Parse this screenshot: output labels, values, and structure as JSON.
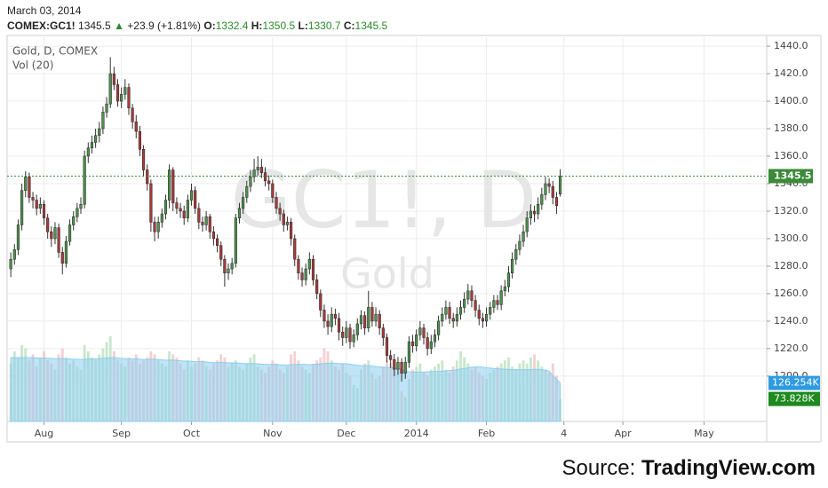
{
  "header": {
    "date": "March 03, 2014",
    "symbol": "COMEX:GC1!",
    "change": "+23.9 (+1.81%)",
    "ohlc_labels": [
      "O:",
      "H:",
      "L:",
      "C:"
    ]
  },
  "chart_data": {
    "type": "candlestick",
    "title": "Gold, D, COMEX",
    "watermark": [
      "GC1!, D",
      "Gold"
    ],
    "open": [
      1278,
      1285,
      1292,
      1310,
      1335,
      1345,
      1330,
      1328,
      1322,
      1325,
      1315,
      1305,
      1300,
      1308,
      1290,
      1282,
      1298,
      1310,
      1316,
      1322,
      1325,
      1360,
      1366,
      1370,
      1375,
      1380,
      1392,
      1398,
      1420,
      1412,
      1400,
      1405,
      1410,
      1395,
      1385,
      1378,
      1365,
      1350,
      1340,
      1312,
      1305,
      1312,
      1318,
      1328,
      1350,
      1326,
      1322,
      1320,
      1315,
      1328,
      1335,
      1322,
      1312,
      1310,
      1316,
      1305,
      1300,
      1295,
      1285,
      1275,
      1278,
      1282,
      1315,
      1322,
      1330,
      1338,
      1345,
      1350,
      1352,
      1348,
      1342,
      1340,
      1330,
      1322,
      1318,
      1310,
      1312,
      1300,
      1285,
      1275,
      1270,
      1278,
      1285,
      1270,
      1260,
      1248,
      1240,
      1236,
      1245,
      1242,
      1232,
      1228,
      1235,
      1225,
      1230,
      1238,
      1244,
      1235,
      1250,
      1240,
      1245,
      1235,
      1228,
      1215,
      1212,
      1205,
      1210,
      1202,
      1210,
      1225,
      1222,
      1230,
      1235,
      1228,
      1220,
      1225,
      1230,
      1240,
      1245,
      1250,
      1242,
      1240,
      1245,
      1250,
      1256,
      1262,
      1255,
      1248,
      1242,
      1240,
      1245,
      1250,
      1255,
      1252,
      1262,
      1265,
      1275,
      1285,
      1292,
      1298,
      1305,
      1315,
      1320,
      1318,
      1325,
      1332,
      1340,
      1338,
      1330,
      1332.4
    ],
    "high": [
      1290,
      1296,
      1314,
      1340,
      1349,
      1348,
      1334,
      1332,
      1330,
      1328,
      1318,
      1309,
      1312,
      1311,
      1294,
      1302,
      1314,
      1320,
      1326,
      1330,
      1364,
      1370,
      1375,
      1380,
      1385,
      1396,
      1403,
      1432,
      1425,
      1416,
      1410,
      1416,
      1413,
      1398,
      1390,
      1382,
      1368,
      1354,
      1343,
      1316,
      1316,
      1322,
      1332,
      1354,
      1352,
      1330,
      1326,
      1324,
      1332,
      1340,
      1338,
      1326,
      1316,
      1320,
      1318,
      1309,
      1303,
      1298,
      1288,
      1282,
      1286,
      1318,
      1326,
      1334,
      1342,
      1350,
      1358,
      1360,
      1358,
      1352,
      1346,
      1343,
      1334,
      1326,
      1321,
      1316,
      1315,
      1303,
      1288,
      1279,
      1282,
      1290,
      1288,
      1274,
      1263,
      1252,
      1245,
      1250,
      1249,
      1246,
      1236,
      1240,
      1238,
      1234,
      1242,
      1248,
      1247,
      1262,
      1254,
      1250,
      1248,
      1238,
      1231,
      1219,
      1216,
      1214,
      1213,
      1214,
      1229,
      1230,
      1234,
      1240,
      1238,
      1232,
      1230,
      1234,
      1244,
      1250,
      1255,
      1254,
      1246,
      1250,
      1255,
      1261,
      1267,
      1266,
      1259,
      1252,
      1246,
      1250,
      1254,
      1259,
      1259,
      1266,
      1270,
      1280,
      1290,
      1296,
      1303,
      1310,
      1320,
      1325,
      1324,
      1330,
      1337,
      1345,
      1344,
      1342,
      1334,
      1350.5
    ],
    "low": [
      1272,
      1281,
      1288,
      1306,
      1330,
      1326,
      1322,
      1317,
      1318,
      1310,
      1300,
      1294,
      1296,
      1286,
      1274,
      1279,
      1295,
      1306,
      1312,
      1318,
      1322,
      1355,
      1362,
      1366,
      1370,
      1376,
      1388,
      1395,
      1408,
      1396,
      1395,
      1401,
      1390,
      1380,
      1373,
      1360,
      1345,
      1335,
      1305,
      1298,
      1300,
      1308,
      1314,
      1322,
      1320,
      1318,
      1315,
      1310,
      1312,
      1324,
      1318,
      1307,
      1305,
      1306,
      1300,
      1295,
      1290,
      1280,
      1265,
      1270,
      1274,
      1279,
      1311,
      1318,
      1326,
      1334,
      1341,
      1346,
      1344,
      1338,
      1335,
      1326,
      1318,
      1313,
      1305,
      1306,
      1295,
      1280,
      1270,
      1265,
      1266,
      1274,
      1266,
      1256,
      1243,
      1235,
      1230,
      1232,
      1237,
      1226,
      1222,
      1224,
      1220,
      1221,
      1226,
      1234,
      1230,
      1232,
      1236,
      1236,
      1230,
      1222,
      1210,
      1206,
      1200,
      1201,
      1196,
      1198,
      1206,
      1217,
      1218,
      1226,
      1223,
      1215,
      1216,
      1221,
      1226,
      1236,
      1241,
      1238,
      1235,
      1236,
      1241,
      1246,
      1252,
      1250,
      1243,
      1237,
      1235,
      1236,
      1241,
      1246,
      1248,
      1248,
      1258,
      1261,
      1271,
      1281,
      1288,
      1294,
      1301,
      1310,
      1312,
      1314,
      1321,
      1328,
      1333,
      1325,
      1318,
      1330.7
    ],
    "close": [
      1285,
      1292,
      1310,
      1335,
      1345,
      1330,
      1328,
      1322,
      1325,
      1315,
      1305,
      1300,
      1308,
      1290,
      1282,
      1298,
      1310,
      1316,
      1322,
      1325,
      1360,
      1366,
      1370,
      1375,
      1380,
      1392,
      1398,
      1420,
      1412,
      1400,
      1405,
      1410,
      1395,
      1385,
      1378,
      1365,
      1350,
      1340,
      1312,
      1305,
      1312,
      1318,
      1328,
      1350,
      1326,
      1322,
      1320,
      1315,
      1328,
      1335,
      1322,
      1312,
      1310,
      1316,
      1305,
      1300,
      1295,
      1285,
      1275,
      1278,
      1282,
      1315,
      1322,
      1330,
      1338,
      1345,
      1350,
      1352,
      1348,
      1342,
      1340,
      1330,
      1322,
      1318,
      1310,
      1312,
      1300,
      1285,
      1275,
      1270,
      1278,
      1285,
      1270,
      1260,
      1248,
      1240,
      1236,
      1245,
      1242,
      1232,
      1228,
      1235,
      1225,
      1230,
      1238,
      1244,
      1235,
      1250,
      1240,
      1245,
      1235,
      1228,
      1215,
      1212,
      1205,
      1210,
      1202,
      1210,
      1225,
      1222,
      1230,
      1235,
      1228,
      1220,
      1225,
      1230,
      1240,
      1245,
      1250,
      1242,
      1240,
      1245,
      1250,
      1256,
      1262,
      1255,
      1248,
      1242,
      1240,
      1245,
      1250,
      1255,
      1252,
      1262,
      1265,
      1275,
      1285,
      1292,
      1298,
      1305,
      1315,
      1320,
      1318,
      1325,
      1332,
      1340,
      1338,
      1330,
      1324,
      1345.5
    ],
    "colors": {
      "up": "#4f8f4f",
      "down": "#a63b3b",
      "wick": "#333333",
      "last_line": "#3a8a3a"
    },
    "xlim": [
      -1,
      205
    ],
    "xticks": [
      {
        "value": 9,
        "label": "Aug"
      },
      {
        "value": 30,
        "label": "Sep"
      },
      {
        "value": 49,
        "label": "Oct"
      },
      {
        "value": 71,
        "label": "Nov"
      },
      {
        "value": 91,
        "label": "Dec"
      },
      {
        "value": 110,
        "label": "2014"
      },
      {
        "value": 129,
        "label": "Feb"
      },
      {
        "value": 150,
        "label": "4"
      },
      {
        "value": 166,
        "label": "Apr"
      },
      {
        "value": 188,
        "label": "May"
      }
    ],
    "ylim": [
      1167,
      1446.5
    ],
    "yticks": [
      {
        "value": 1200,
        "label": "1200.0"
      },
      {
        "value": 1220,
        "label": "1220.0"
      },
      {
        "value": 1240,
        "label": "1240.0"
      },
      {
        "value": 1260,
        "label": "1260.0"
      },
      {
        "value": 1280,
        "label": "1280.0"
      },
      {
        "value": 1300,
        "label": "1300.0"
      },
      {
        "value": 1320,
        "label": "1320.0"
      },
      {
        "value": 1340,
        "label": "1340.0"
      },
      {
        "value": 1360,
        "label": "1360.0"
      },
      {
        "value": 1380,
        "label": "1380.0"
      },
      {
        "value": 1400,
        "label": "1400.0"
      },
      {
        "value": 1420,
        "label": "1420.0"
      },
      {
        "value": 1440,
        "label": "1440.0"
      }
    ],
    "grid": true,
    "y2lim": [
      0,
      1260
    ],
    "volume": {
      "axis": "y2",
      "up_color": "#bfe3c4",
      "down_color": "#f2c9c9",
      "last_label": "73.828K",
      "tag_color": "#1e8a1e",
      "values": [
        190,
        230,
        210,
        250,
        240,
        200,
        220,
        180,
        210,
        230,
        200,
        190,
        170,
        220,
        240,
        210,
        190,
        200,
        180,
        170,
        250,
        230,
        210,
        200,
        220,
        240,
        260,
        280,
        230,
        200,
        190,
        180,
        210,
        200,
        220,
        190,
        200,
        210,
        230,
        220,
        200,
        190,
        180,
        230,
        220,
        210,
        190,
        170,
        200,
        180,
        190,
        210,
        200,
        180,
        170,
        190,
        200,
        220,
        210,
        180,
        190,
        200,
        180,
        170,
        190,
        210,
        220,
        180,
        170,
        160,
        180,
        200,
        190,
        170,
        160,
        180,
        220,
        230,
        200,
        180,
        170,
        160,
        190,
        200,
        210,
        240,
        230,
        200,
        180,
        170,
        190,
        160,
        150,
        120,
        110,
        170,
        190,
        200,
        160,
        140,
        150,
        180,
        200,
        190,
        170,
        160,
        100,
        80,
        140,
        170,
        180,
        190,
        160,
        150,
        170,
        180,
        190,
        200,
        170,
        160,
        180,
        200,
        230,
        210,
        190,
        170,
        180,
        160,
        150,
        140,
        160,
        170,
        180,
        190,
        200,
        210,
        180,
        170,
        190,
        200,
        190,
        210,
        220,
        200,
        180,
        170,
        160,
        190,
        150,
        73.828
      ]
    },
    "volume_ma": {
      "name": "Vol (20)",
      "axis": "y2",
      "color": "#8ccdf0",
      "tag_color": "#2f9be0",
      "last_label": "126.254K",
      "values": [
        210,
        209,
        209,
        210,
        210,
        209,
        209,
        208,
        208,
        208,
        207,
        207,
        206,
        206,
        206,
        205,
        205,
        204,
        204,
        203,
        204,
        205,
        205,
        205,
        206,
        207,
        208,
        209,
        209,
        208,
        207,
        206,
        206,
        205,
        205,
        204,
        203,
        203,
        204,
        204,
        203,
        202,
        201,
        201,
        201,
        200,
        199,
        198,
        198,
        197,
        196,
        196,
        196,
        195,
        194,
        193,
        193,
        193,
        193,
        192,
        192,
        192,
        191,
        190,
        190,
        190,
        190,
        189,
        188,
        187,
        187,
        187,
        187,
        186,
        185,
        185,
        186,
        187,
        187,
        187,
        187,
        186,
        187,
        188,
        189,
        190,
        191,
        191,
        191,
        190,
        190,
        189,
        188,
        186,
        184,
        183,
        183,
        183,
        182,
        180,
        179,
        178,
        178,
        177,
        175,
        174,
        170,
        165,
        163,
        162,
        162,
        162,
        162,
        163,
        163,
        164,
        164,
        165,
        166,
        167,
        168,
        170,
        172,
        174,
        176,
        178,
        179,
        179,
        178,
        176,
        175,
        174,
        173,
        172,
        171,
        171,
        170,
        170,
        170,
        170,
        170,
        170,
        171,
        171,
        170,
        168,
        165,
        150,
        138,
        126.254
      ]
    }
  },
  "source": {
    "prefix": "Source:",
    "name": "TradingView.com"
  }
}
